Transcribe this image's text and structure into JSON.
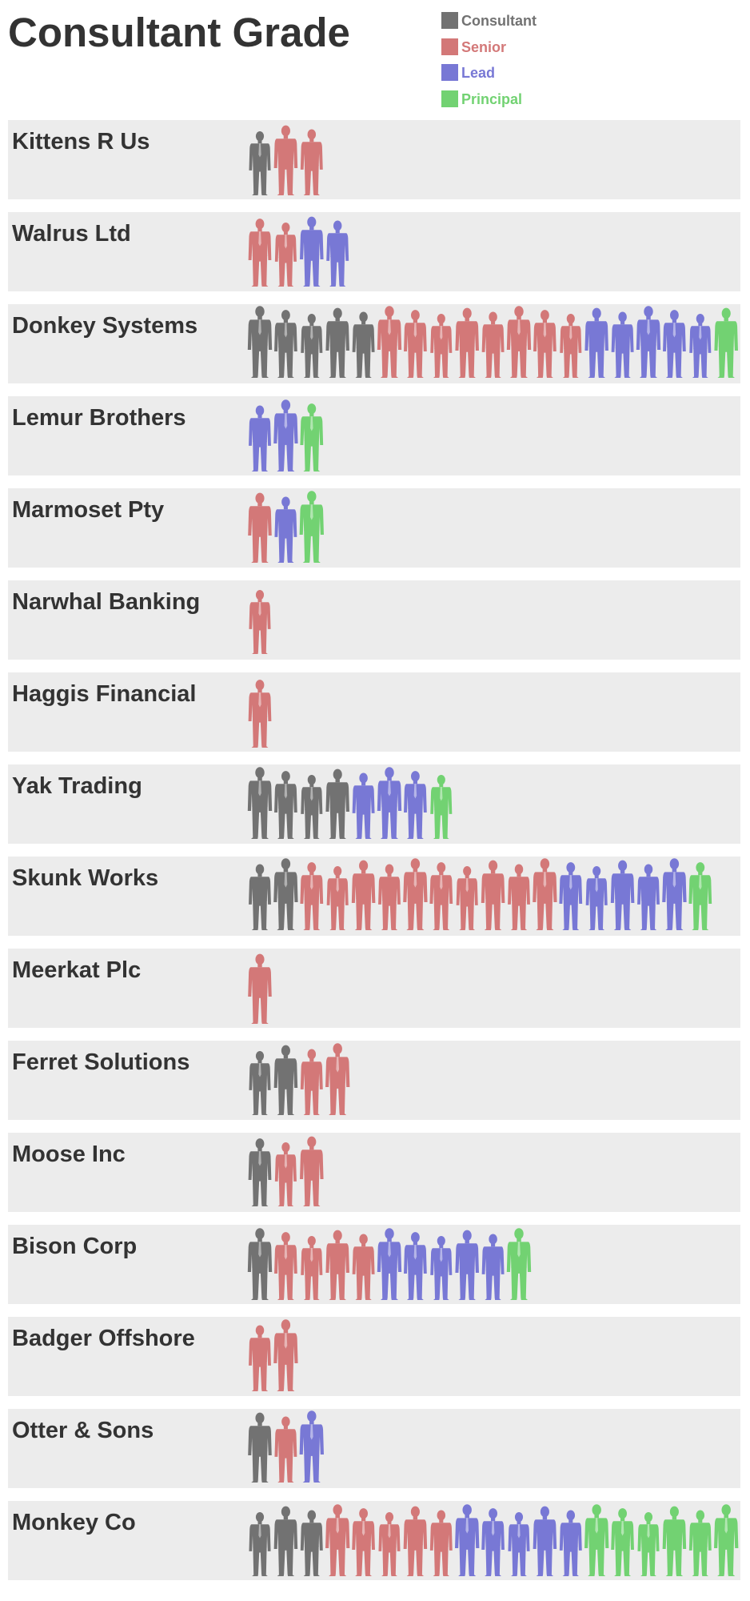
{
  "chart_data": {
    "type": "table",
    "title": "Consultant Grade",
    "grades": [
      "Consultant",
      "Senior",
      "Lead",
      "Principal"
    ],
    "colors": {
      "Consultant": "#727272",
      "Senior": "#d37878",
      "Lead": "#7878d5",
      "Principal": "#72d272"
    },
    "legend_position": "top-right",
    "rows": [
      {
        "company": "Kittens R Us",
        "counts": {
          "Consultant": 1,
          "Senior": 2,
          "Lead": 0,
          "Principal": 0
        }
      },
      {
        "company": "Walrus Ltd",
        "counts": {
          "Consultant": 0,
          "Senior": 2,
          "Lead": 2,
          "Principal": 0
        }
      },
      {
        "company": "Donkey Systems",
        "counts": {
          "Consultant": 5,
          "Senior": 8,
          "Lead": 5,
          "Principal": 1
        }
      },
      {
        "company": "Lemur Brothers",
        "counts": {
          "Consultant": 0,
          "Senior": 0,
          "Lead": 2,
          "Principal": 1
        }
      },
      {
        "company": "Marmoset Pty",
        "counts": {
          "Consultant": 0,
          "Senior": 1,
          "Lead": 1,
          "Principal": 1
        }
      },
      {
        "company": "Narwhal Banking",
        "counts": {
          "Consultant": 0,
          "Senior": 1,
          "Lead": 0,
          "Principal": 0
        }
      },
      {
        "company": "Haggis Financial",
        "counts": {
          "Consultant": 0,
          "Senior": 1,
          "Lead": 0,
          "Principal": 0
        }
      },
      {
        "company": "Yak Trading",
        "counts": {
          "Consultant": 4,
          "Senior": 0,
          "Lead": 3,
          "Principal": 1
        }
      },
      {
        "company": "Skunk Works",
        "counts": {
          "Consultant": 2,
          "Senior": 10,
          "Lead": 5,
          "Principal": 1
        }
      },
      {
        "company": "Meerkat Plc",
        "counts": {
          "Consultant": 0,
          "Senior": 1,
          "Lead": 0,
          "Principal": 0
        }
      },
      {
        "company": "Ferret Solutions",
        "counts": {
          "Consultant": 2,
          "Senior": 2,
          "Lead": 0,
          "Principal": 0
        }
      },
      {
        "company": "Moose Inc",
        "counts": {
          "Consultant": 1,
          "Senior": 2,
          "Lead": 0,
          "Principal": 0
        }
      },
      {
        "company": "Bison Corp",
        "counts": {
          "Consultant": 1,
          "Senior": 4,
          "Lead": 5,
          "Principal": 1
        }
      },
      {
        "company": "Badger Offshore",
        "counts": {
          "Consultant": 0,
          "Senior": 2,
          "Lead": 0,
          "Principal": 0
        }
      },
      {
        "company": "Otter & Sons",
        "counts": {
          "Consultant": 1,
          "Senior": 1,
          "Lead": 1,
          "Principal": 0
        }
      },
      {
        "company": "Monkey Co",
        "counts": {
          "Consultant": 3,
          "Senior": 5,
          "Lead": 5,
          "Principal": 6
        }
      }
    ]
  }
}
